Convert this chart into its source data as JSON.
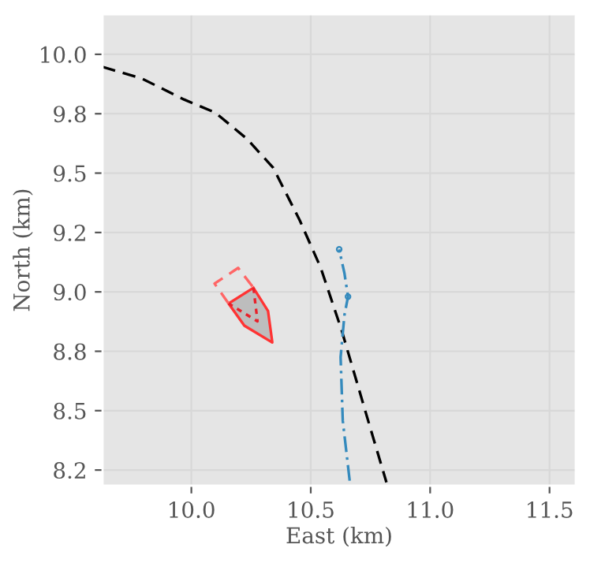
{
  "chart_data": {
    "type": "line",
    "xlabel": "East (km)",
    "ylabel": "North (km)",
    "xlim": [
      9.628,
      11.61
    ],
    "ylim": [
      8.184,
      10.169
    ],
    "xticks": [
      {
        "value": 10.0,
        "label": "10.0"
      },
      {
        "value": 10.5,
        "label": "10.5"
      },
      {
        "value": 11.0,
        "label": "11.0"
      },
      {
        "value": 11.5,
        "label": "11.5"
      }
    ],
    "yticks": [
      {
        "value": 8.25,
        "label": "8.2"
      },
      {
        "value": 8.5,
        "label": "8.5"
      },
      {
        "value": 8.75,
        "label": "8.8"
      },
      {
        "value": 9.0,
        "label": "9.0"
      },
      {
        "value": 9.25,
        "label": "9.2"
      },
      {
        "value": 9.5,
        "label": "9.5"
      },
      {
        "value": 9.75,
        "label": "9.8"
      },
      {
        "value": 10.0,
        "label": "10.0"
      }
    ],
    "grid": true,
    "series": [
      {
        "color": "#000000",
        "line_style": "dashed",
        "x": [
          9.628,
          9.793,
          9.969,
          10.101,
          10.233,
          10.343,
          10.454,
          10.542,
          10.63,
          10.74,
          10.817
        ],
        "values": [
          9.947,
          9.898,
          9.81,
          9.754,
          9.644,
          9.522,
          9.301,
          9.101,
          8.836,
          8.459,
          8.198
        ]
      },
      {
        "color": "#348abd",
        "line_style": "dashdot",
        "x": [
          10.663,
          10.634,
          10.625,
          10.641,
          10.656,
          10.641,
          10.619
        ],
        "values": [
          8.205,
          8.459,
          8.725,
          8.902,
          8.98,
          9.079,
          9.179
        ]
      },
      {
        "type": "scatter",
        "color": "#348abd",
        "marker": "circle",
        "x": [
          10.656,
          10.619
        ],
        "values": [
          8.98,
          9.179
        ]
      },
      {
        "type": "area",
        "color": "#ff3333",
        "line_style": "solid",
        "x": [
          10.26,
          10.321,
          10.339,
          10.222,
          10.156,
          10.26
        ],
        "values": [
          9.017,
          8.92,
          8.787,
          8.858,
          8.951,
          9.017
        ]
      },
      {
        "color": "#ff6666",
        "line_style": "dashed",
        "x": [
          10.156,
          10.097,
          10.196,
          10.26
        ],
        "values": [
          8.951,
          9.035,
          9.101,
          9.017
        ]
      },
      {
        "color": "#e8202a",
        "line_style": "dotted",
        "x": [
          10.26,
          10.277,
          10.156
        ],
        "values": [
          9.017,
          8.876,
          8.951
        ]
      }
    ]
  }
}
